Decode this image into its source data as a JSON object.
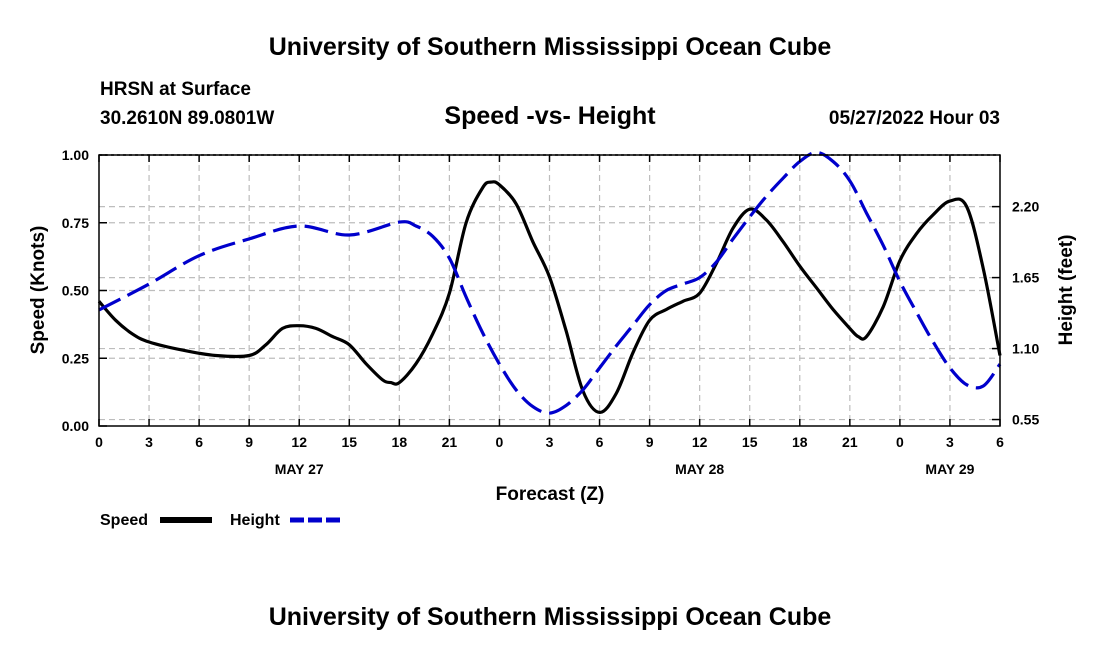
{
  "page": {
    "title_top": "University of Southern Mississippi Ocean Cube",
    "station": "HRSN at Surface",
    "coords": "30.2610N  89.0801W",
    "datetime": "05/27/2022 Hour 03",
    "title_bottom": "University of Southern Mississippi Ocean Cube"
  },
  "chart_data": {
    "type": "line",
    "title": "Speed -vs- Height",
    "xlabel": "Forecast (Z)",
    "ylabel_left": "Speed (Knots)",
    "ylabel_right": "Height (feet)",
    "xlim": [
      0,
      54
    ],
    "ylim_left": [
      0,
      1
    ],
    "ylim_right": [
      0.5,
      2.6
    ],
    "x_ticks": [
      0,
      3,
      6,
      9,
      12,
      15,
      18,
      21,
      24,
      27,
      30,
      33,
      36,
      39,
      42,
      45,
      48,
      51,
      54
    ],
    "x_tick_labels": [
      "0",
      "3",
      "6",
      "9",
      "12",
      "15",
      "18",
      "21",
      "0",
      "3",
      "6",
      "9",
      "12",
      "15",
      "18",
      "21",
      "0",
      "3",
      "6"
    ],
    "date_labels": [
      {
        "x": 12,
        "label": "MAY 27"
      },
      {
        "x": 36,
        "label": "MAY 28"
      },
      {
        "x": 51,
        "label": "MAY 29"
      }
    ],
    "y_left_ticks": [
      0,
      0.25,
      0.5,
      0.75,
      1
    ],
    "y_left_tick_labels": [
      "0.00",
      "0.25",
      "0.50",
      "0.75",
      "1.00"
    ],
    "y_right_ticks": [
      0.55,
      1.1,
      1.65,
      2.2
    ],
    "y_right_tick_labels": [
      "0.55",
      "1.10",
      "1.65",
      "2.20"
    ],
    "legend": [
      {
        "name": "Speed",
        "color": "#000000",
        "style": "solid"
      },
      {
        "name": "Height",
        "color": "#0000cc",
        "style": "dashed"
      }
    ],
    "series": [
      {
        "name": "Speed",
        "axis": "left",
        "color": "#000000",
        "x": [
          0,
          1,
          2,
          3,
          5,
          7,
          9,
          10,
          11,
          12,
          13,
          14,
          15,
          16,
          17,
          17.5,
          18,
          19,
          20,
          21,
          22,
          23,
          23.5,
          24,
          25,
          26,
          27,
          28,
          29,
          30,
          31,
          32,
          33,
          34,
          35,
          36,
          37,
          38,
          39,
          40,
          41,
          42,
          43,
          44,
          45,
          45.5,
          46,
          47,
          48,
          49,
          50,
          51,
          52,
          53,
          54
        ],
        "y": [
          0.46,
          0.39,
          0.34,
          0.31,
          0.28,
          0.26,
          0.26,
          0.3,
          0.36,
          0.37,
          0.36,
          0.33,
          0.3,
          0.23,
          0.17,
          0.16,
          0.16,
          0.23,
          0.34,
          0.49,
          0.75,
          0.88,
          0.9,
          0.89,
          0.82,
          0.68,
          0.55,
          0.35,
          0.13,
          0.05,
          0.12,
          0.27,
          0.39,
          0.43,
          0.46,
          0.49,
          0.6,
          0.73,
          0.8,
          0.76,
          0.68,
          0.59,
          0.51,
          0.43,
          0.36,
          0.33,
          0.33,
          0.44,
          0.61,
          0.71,
          0.78,
          0.83,
          0.81,
          0.58,
          0.26
        ]
      },
      {
        "name": "Height",
        "axis": "right",
        "color": "#0000cc",
        "x": [
          0,
          3,
          6,
          9,
          12,
          15,
          18,
          19,
          20,
          21,
          22,
          23,
          24,
          25,
          26,
          27,
          28,
          29,
          30,
          31,
          32,
          33,
          34,
          35,
          36,
          37,
          38,
          39,
          40,
          41,
          42,
          43,
          44,
          45,
          46,
          47,
          48,
          49,
          50,
          51,
          52,
          53,
          54
        ],
        "y": [
          1.4,
          1.6,
          1.82,
          1.95,
          2.05,
          1.98,
          2.08,
          2.05,
          1.97,
          1.8,
          1.5,
          1.22,
          0.98,
          0.78,
          0.65,
          0.6,
          0.66,
          0.78,
          0.95,
          1.12,
          1.28,
          1.44,
          1.55,
          1.6,
          1.65,
          1.77,
          1.95,
          2.12,
          2.28,
          2.42,
          2.55,
          2.62,
          2.55,
          2.4,
          2.15,
          1.9,
          1.62,
          1.38,
          1.15,
          0.95,
          0.82,
          0.81,
          0.98
        ]
      }
    ]
  }
}
